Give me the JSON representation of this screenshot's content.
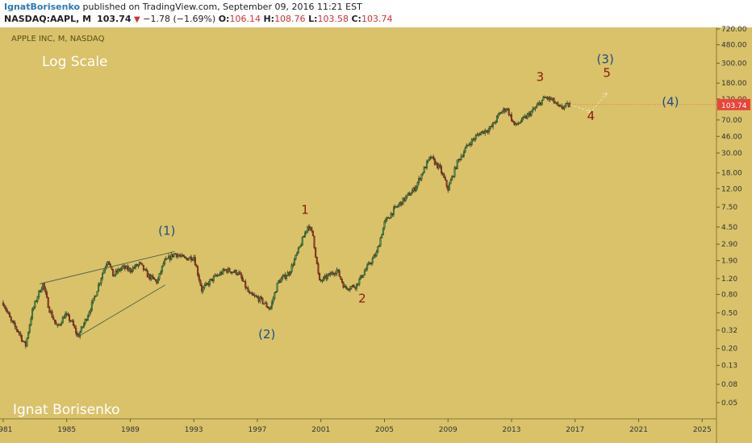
{
  "header": {
    "author": "IgnatBorisenko",
    "published_text": " published on TradingView.com, September 09, 2016 11:21 EST",
    "symbol": "NASDAQ:AAPL, M",
    "last": "103.74",
    "change_arrow": "▼",
    "change": "−1.78 (−1.69%)",
    "o_label": "O:",
    "o_value": "106.14",
    "h_label": "H:",
    "h_value": "108.76",
    "l_label": "L:",
    "l_value": "103.58",
    "c_label": "C:",
    "c_value": "103.74"
  },
  "chart_data": {
    "type": "candlestick",
    "title": "APPLE INC, M, NASDAQ",
    "scale_note": "Log Scale",
    "watermark": "Ignat Borisenko",
    "y_scale": "log",
    "ylim": [
      0.033,
      720
    ],
    "xlim": [
      1980.8,
      2025.9
    ],
    "y_ticks": [
      "720.00",
      "480.00",
      "300.00",
      "180.00",
      "120.00",
      "70.00",
      "46.00",
      "30.00",
      "18.00",
      "12.00",
      "7.50",
      "4.50",
      "2.90",
      "1.90",
      "1.20",
      "0.80",
      "0.50",
      "0.32",
      "0.20",
      "0.13",
      "0.08",
      "0.05"
    ],
    "x_ticks": [
      "1981",
      "1985",
      "1989",
      "1993",
      "1997",
      "2001",
      "2005",
      "2009",
      "2013",
      "2017",
      "2021",
      "2025"
    ],
    "last_price_label": "103.74",
    "wave_labels": [
      "(1)",
      "(2)",
      "(3)",
      "(4)",
      "1",
      "2",
      "3",
      "4",
      "5"
    ],
    "price_path": [
      [
        1981.0,
        0.65
      ],
      [
        1981.5,
        0.4
      ],
      [
        1982.0,
        0.3
      ],
      [
        1982.4,
        0.21
      ],
      [
        1982.8,
        0.5
      ],
      [
        1983.2,
        0.8
      ],
      [
        1983.5,
        1.05
      ],
      [
        1983.9,
        0.55
      ],
      [
        1984.4,
        0.34
      ],
      [
        1984.9,
        0.48
      ],
      [
        1985.3,
        0.4
      ],
      [
        1985.7,
        0.27
      ],
      [
        1986.2,
        0.42
      ],
      [
        1986.7,
        0.7
      ],
      [
        1987.2,
        1.3
      ],
      [
        1987.6,
        2.0
      ],
      [
        1987.9,
        1.3
      ],
      [
        1988.5,
        1.6
      ],
      [
        1989.0,
        1.5
      ],
      [
        1989.6,
        1.75
      ],
      [
        1990.1,
        1.3
      ],
      [
        1990.7,
        1.1
      ],
      [
        1991.1,
        1.8
      ],
      [
        1991.8,
        2.3
      ],
      [
        1992.4,
        2.0
      ],
      [
        1993.0,
        2.1
      ],
      [
        1993.5,
        0.9
      ],
      [
        1994.2,
        1.2
      ],
      [
        1995.0,
        1.5
      ],
      [
        1995.8,
        1.4
      ],
      [
        1996.5,
        0.8
      ],
      [
        1997.2,
        0.7
      ],
      [
        1997.8,
        0.55
      ],
      [
        1998.3,
        1.1
      ],
      [
        1999.0,
        1.4
      ],
      [
        1999.6,
        2.5
      ],
      [
        2000.2,
        4.8
      ],
      [
        2000.5,
        3.6
      ],
      [
        2000.9,
        1.1
      ],
      [
        2001.5,
        1.3
      ],
      [
        2002.0,
        1.5
      ],
      [
        2002.5,
        0.95
      ],
      [
        2003.2,
        1.0
      ],
      [
        2003.8,
        1.5
      ],
      [
        2004.5,
        2.3
      ],
      [
        2005.0,
        5.0
      ],
      [
        2005.6,
        7.0
      ],
      [
        2006.2,
        9.0
      ],
      [
        2006.9,
        12.0
      ],
      [
        2007.5,
        20.0
      ],
      [
        2007.9,
        27.0
      ],
      [
        2008.5,
        20.0
      ],
      [
        2009.0,
        12.0
      ],
      [
        2009.6,
        24.0
      ],
      [
        2010.3,
        38.0
      ],
      [
        2011.0,
        50.0
      ],
      [
        2011.7,
        57.0
      ],
      [
        2012.3,
        85.0
      ],
      [
        2012.7,
        95.0
      ],
      [
        2013.2,
        60.0
      ],
      [
        2013.9,
        75.0
      ],
      [
        2014.5,
        95.0
      ],
      [
        2015.1,
        125.0
      ],
      [
        2015.6,
        115.0
      ],
      [
        2016.0,
        95.0
      ],
      [
        2016.7,
        104.0
      ]
    ],
    "projection_path": [
      [
        2016.7,
        103.74
      ],
      [
        2018.0,
        86.0
      ],
      [
        2019.0,
        140.0
      ]
    ],
    "channel_lines": [
      {
        "from": [
          1983.3,
          1.05
        ],
        "to": [
          1991.8,
          2.4
        ]
      },
      {
        "from": [
          1985.7,
          0.27
        ],
        "to": [
          1991.2,
          1.02
        ]
      }
    ],
    "colors": {
      "background": "#d9c26a",
      "up": "#3da14b",
      "down": "#bb2a1b",
      "blue_label": "#1d4e89",
      "red_label": "#8b1a0e",
      "price_tag": "#e8453c"
    }
  }
}
